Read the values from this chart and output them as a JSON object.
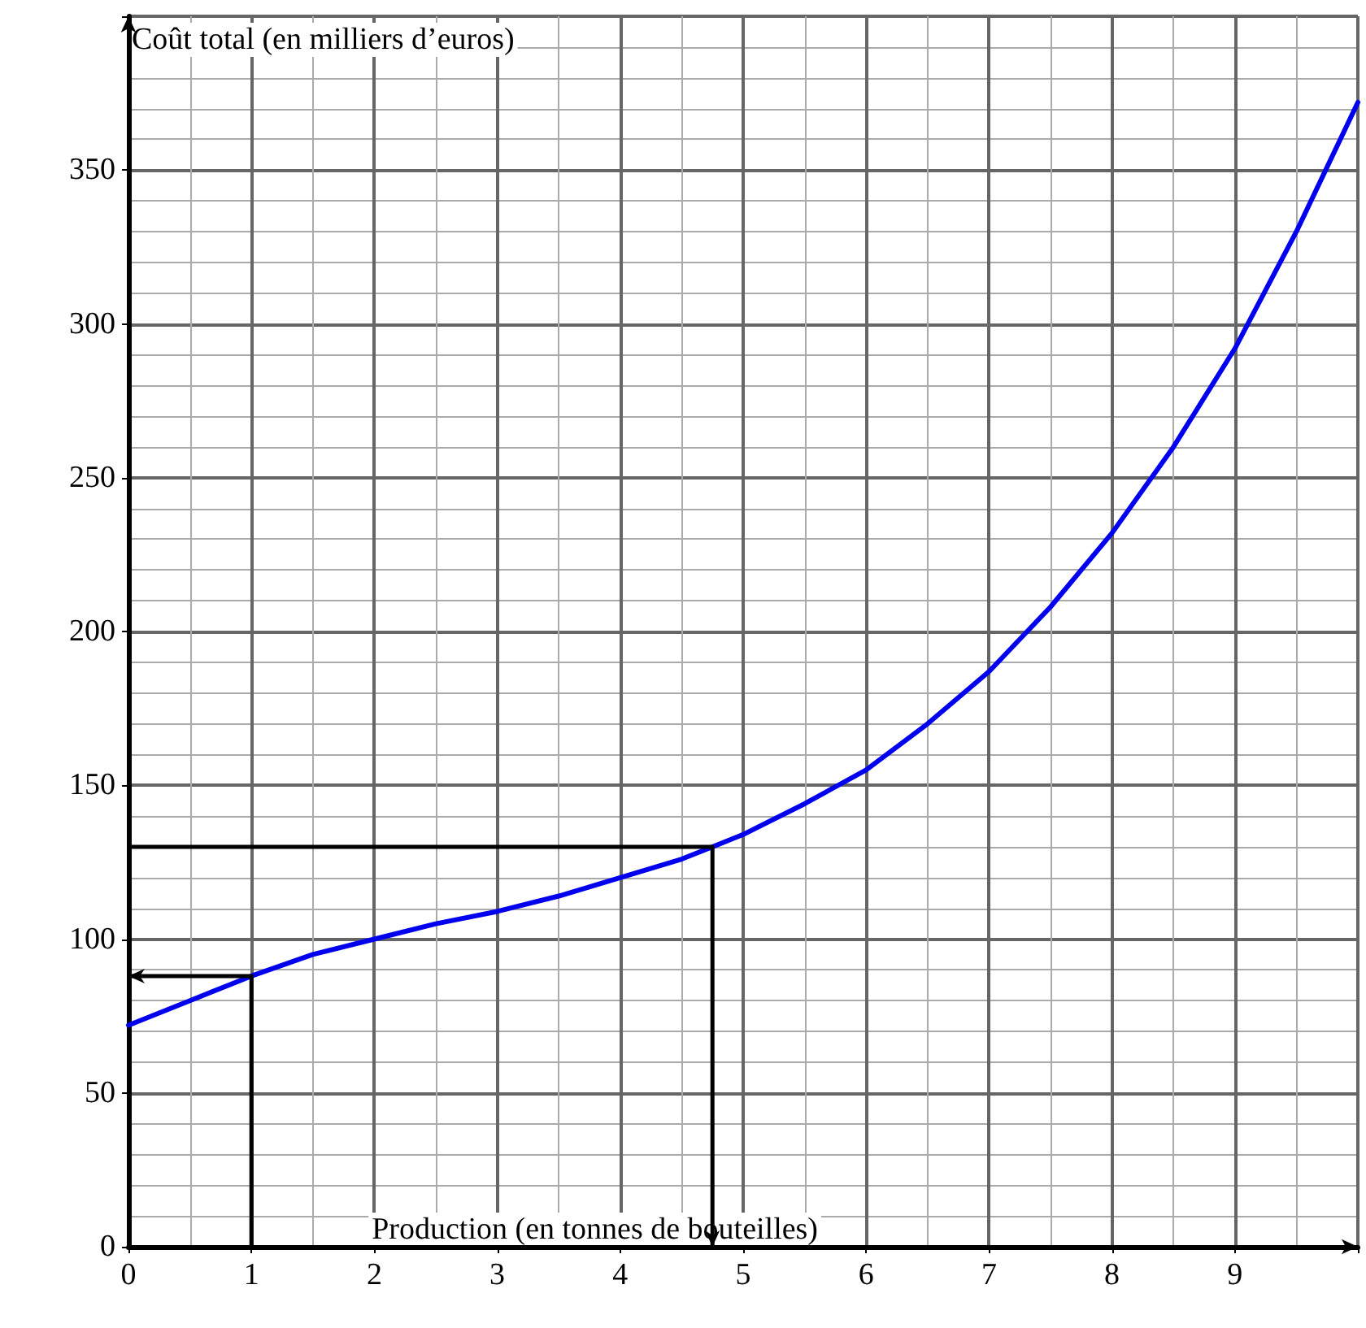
{
  "chart_data": {
    "type": "line",
    "xlabel": "Production (en tonnes de bouteilles)",
    "ylabel": "Coût total (en milliers d’euros)",
    "xlim": [
      0,
      10
    ],
    "ylim": [
      0,
      400
    ],
    "xticks": [
      0,
      1,
      2,
      3,
      4,
      5,
      6,
      7,
      8,
      9
    ],
    "yticks": [
      0,
      50,
      100,
      150,
      200,
      250,
      300,
      350
    ],
    "grid": true,
    "marker": "none",
    "line_style": "solid",
    "series": [
      {
        "color": "#0000ee",
        "x": [
          0,
          0.5,
          1,
          1.5,
          2,
          2.5,
          3,
          3.5,
          4,
          4.5,
          4.75,
          5,
          5.5,
          6,
          6.5,
          7,
          7.5,
          8,
          8.5,
          9,
          9.5,
          10
        ],
        "values": [
          72,
          80,
          88,
          95,
          100,
          105,
          109,
          114,
          120,
          126,
          130,
          134,
          144,
          155,
          170,
          187,
          208,
          232,
          260,
          292,
          330,
          372
        ]
      },
      {
        "color": "#000000",
        "x": [
          1,
          1,
          0
        ],
        "values": [
          0,
          88,
          88
        ]
      },
      {
        "color": "#000000",
        "x": [
          0,
          4.75,
          4.75
        ],
        "values": [
          130,
          130,
          0
        ]
      }
    ]
  }
}
